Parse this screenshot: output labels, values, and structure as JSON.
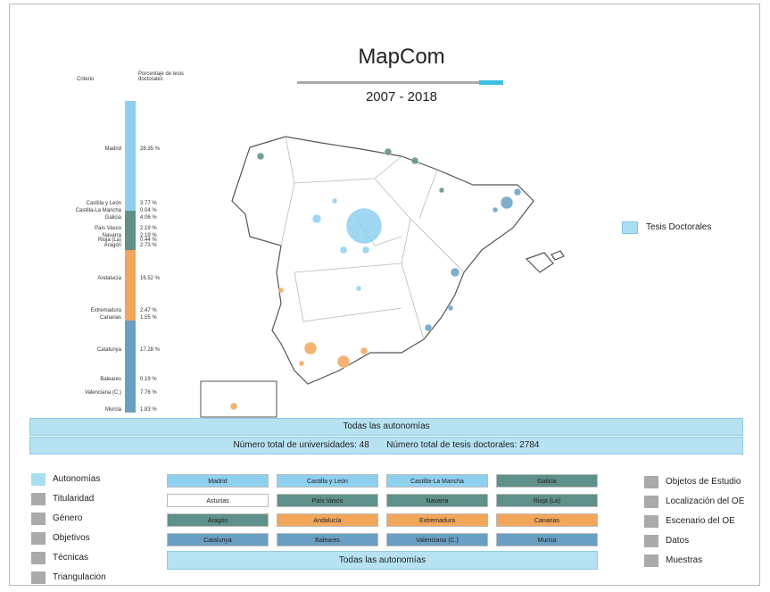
{
  "header": {
    "title": "MapCom",
    "period": "2007 - 2018"
  },
  "criteria": {
    "headers": [
      "Criterio",
      "Porcentaje de tesis doctorales"
    ],
    "rows": [
      {
        "name": "Madrid",
        "value": 28.35,
        "label": "28.35 %",
        "color": "#8fd0ee"
      },
      {
        "name": "Castilla y León",
        "value": 3.77,
        "label": "3.77 %",
        "color": "#8fd0ee"
      },
      {
        "name": "Castilla-La Mancha",
        "value": 0.04,
        "label": "0.04 %",
        "color": "#8fd0ee"
      },
      {
        "name": "Galicia",
        "value": 4.06,
        "label": "4.06 %",
        "color": "#5f9089"
      },
      {
        "name": "País Vasco",
        "value": 2.19,
        "label": "2.19 %",
        "color": "#5f9089"
      },
      {
        "name": "Navarra",
        "value": 2.19,
        "label": "2.19 %",
        "color": "#5f9089"
      },
      {
        "name": "Rioja (La)",
        "value": 0.44,
        "label": "0.44 %",
        "color": "#5f9089"
      },
      {
        "name": "Aragón",
        "value": 2.73,
        "label": "2.73 %",
        "color": "#5f9089"
      },
      {
        "name": "Andalucía",
        "value": 16.52,
        "label": "16.52 %",
        "color": "#f2a65a"
      },
      {
        "name": "Extremadura",
        "value": 2.47,
        "label": "2.47 %",
        "color": "#f2a65a"
      },
      {
        "name": "Canarias",
        "value": 1.55,
        "label": "1.55 %",
        "color": "#f2a65a"
      },
      {
        "name": "Catalunya",
        "value": 17.28,
        "label": "17.28 %",
        "color": "#6a9fc4"
      },
      {
        "name": "Baleares",
        "value": 0.19,
        "label": "0.19 %",
        "color": "#6a9fc4"
      },
      {
        "name": "Valenciana (C.)",
        "value": 7.76,
        "label": "7.76 %",
        "color": "#6a9fc4"
      },
      {
        "name": "Murcia",
        "value": 1.83,
        "label": "1.83 %",
        "color": "#6a9fc4"
      }
    ]
  },
  "legend": "Tesis Doctorales",
  "summary": {
    "scope": "Todas las autonomías",
    "universities": "Número total de universidades: 48",
    "theses": "Número total de tesis doctorales: 2784"
  },
  "left_menu": [
    {
      "label": "Autonomías",
      "color": "#a9def2"
    },
    {
      "label": "Titularidad",
      "color": "#aaaaaa"
    },
    {
      "label": "Género",
      "color": "#aaaaaa"
    },
    {
      "label": "Objetivos",
      "color": "#aaaaaa"
    },
    {
      "label": "Técnicas",
      "color": "#aaaaaa"
    },
    {
      "label": "Triangulacion",
      "color": "#aaaaaa"
    }
  ],
  "buttons": [
    {
      "label": "Madrid",
      "color": "#8fd0ee"
    },
    {
      "label": "Castilla y León",
      "color": "#8fd0ee"
    },
    {
      "label": "Castilla-La Mancha",
      "color": "#8fd0ee"
    },
    {
      "label": "Galicia",
      "color": "#5f9089"
    },
    {
      "label": "Asturias",
      "color": "#ffffff"
    },
    {
      "label": "País Vasco",
      "color": "#5f9089"
    },
    {
      "label": "Navarra",
      "color": "#5f9089"
    },
    {
      "label": "Rioja (La)",
      "color": "#5f9089"
    },
    {
      "label": "Aragón",
      "color": "#5f9089"
    },
    {
      "label": "Andalucía",
      "color": "#f2a65a"
    },
    {
      "label": "Extremadura",
      "color": "#f2a65a"
    },
    {
      "label": "Canarias",
      "color": "#f2a65a"
    },
    {
      "label": "Catalunya",
      "color": "#6a9fc4"
    },
    {
      "label": "Baleares",
      "color": "#6a9fc4"
    },
    {
      "label": "Valenciana (C.)",
      "color": "#6a9fc4"
    },
    {
      "label": "Murcia",
      "color": "#6a9fc4"
    }
  ],
  "all_button": "Todas las autonomías",
  "right_menu": [
    "Objetos de Estudio",
    "Localización del OE",
    "Escenario del OE",
    "Datos",
    "Muestras"
  ]
}
